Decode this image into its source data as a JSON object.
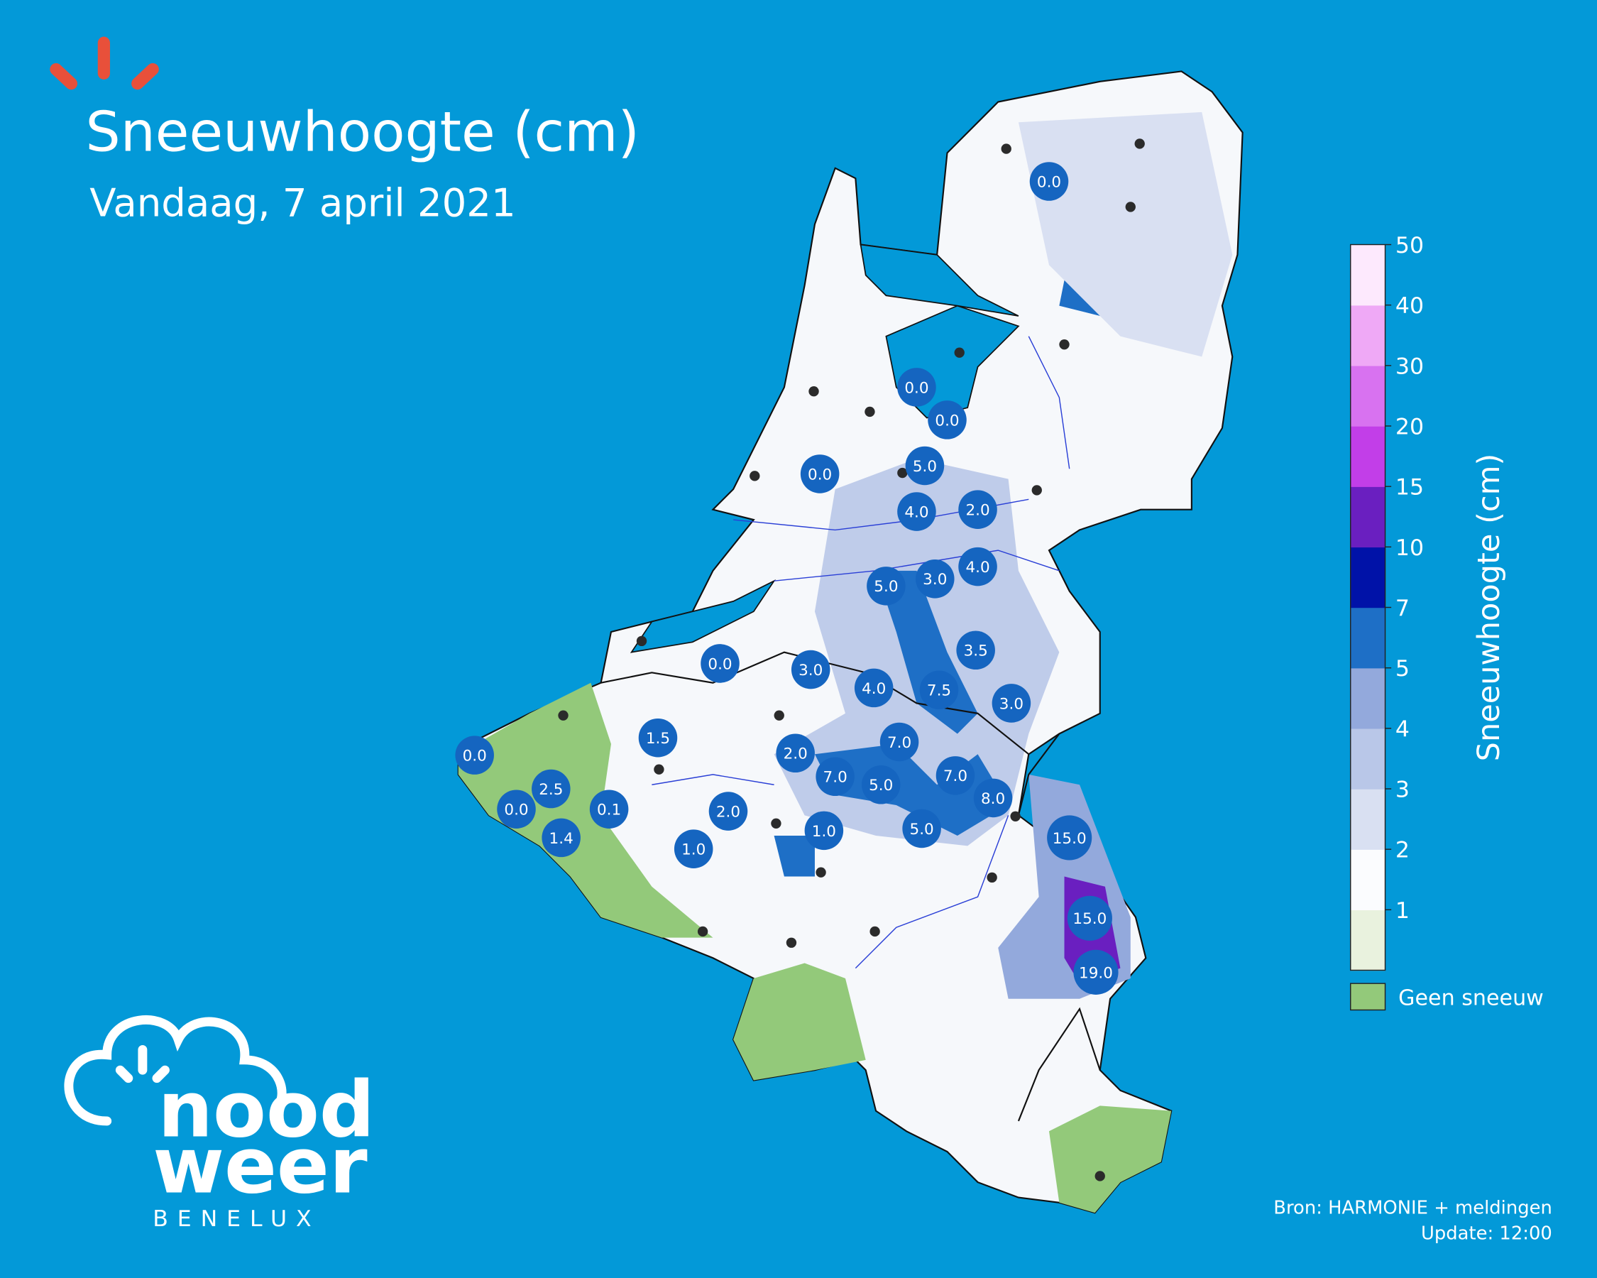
{
  "header": {
    "title": "Sneeuwhoogte (cm)",
    "subtitle": "Vandaag, 7 april 2021"
  },
  "legend": {
    "title": "Sneeuwhoogte (cm)",
    "ticks": [
      1,
      2,
      3,
      4,
      5,
      7,
      10,
      15,
      20,
      30,
      40,
      50
    ],
    "colors": [
      "#e9f2de",
      "#fbfcfe",
      "#d9e0f2",
      "#b9c7e8",
      "#93a9dc",
      "#1e6fc6",
      "#0012a8",
      "#6a1fc0",
      "#c23ee8",
      "#d872f0",
      "#efa9f6",
      "#fde9fd"
    ],
    "no_snow_label": "Geen sneeuw",
    "no_snow_color": "#93c97a"
  },
  "markers": [
    "0.0",
    "0.0",
    "0.0",
    "0.0",
    "5.0",
    "4.0",
    "2.0",
    "4.0",
    "5.0",
    "3.0",
    "3.5",
    "0.0",
    "3.0",
    "4.0",
    "7.5",
    "3.0",
    "0.0",
    "1.5",
    "2.0",
    "7.0",
    "7.0",
    "5.0",
    "7.0",
    "8.0",
    "2.5",
    "0.0",
    "0.1",
    "1.4",
    "2.0",
    "1.0",
    "1.0",
    "5.0",
    "15.0",
    "15.0",
    "19.0"
  ],
  "logo": {
    "line1": "nood",
    "line2": "weer",
    "line3": "BENELUX"
  },
  "footer": {
    "source": "Bron: HARMONIE + meldingen",
    "update": "Update: 12:00"
  }
}
